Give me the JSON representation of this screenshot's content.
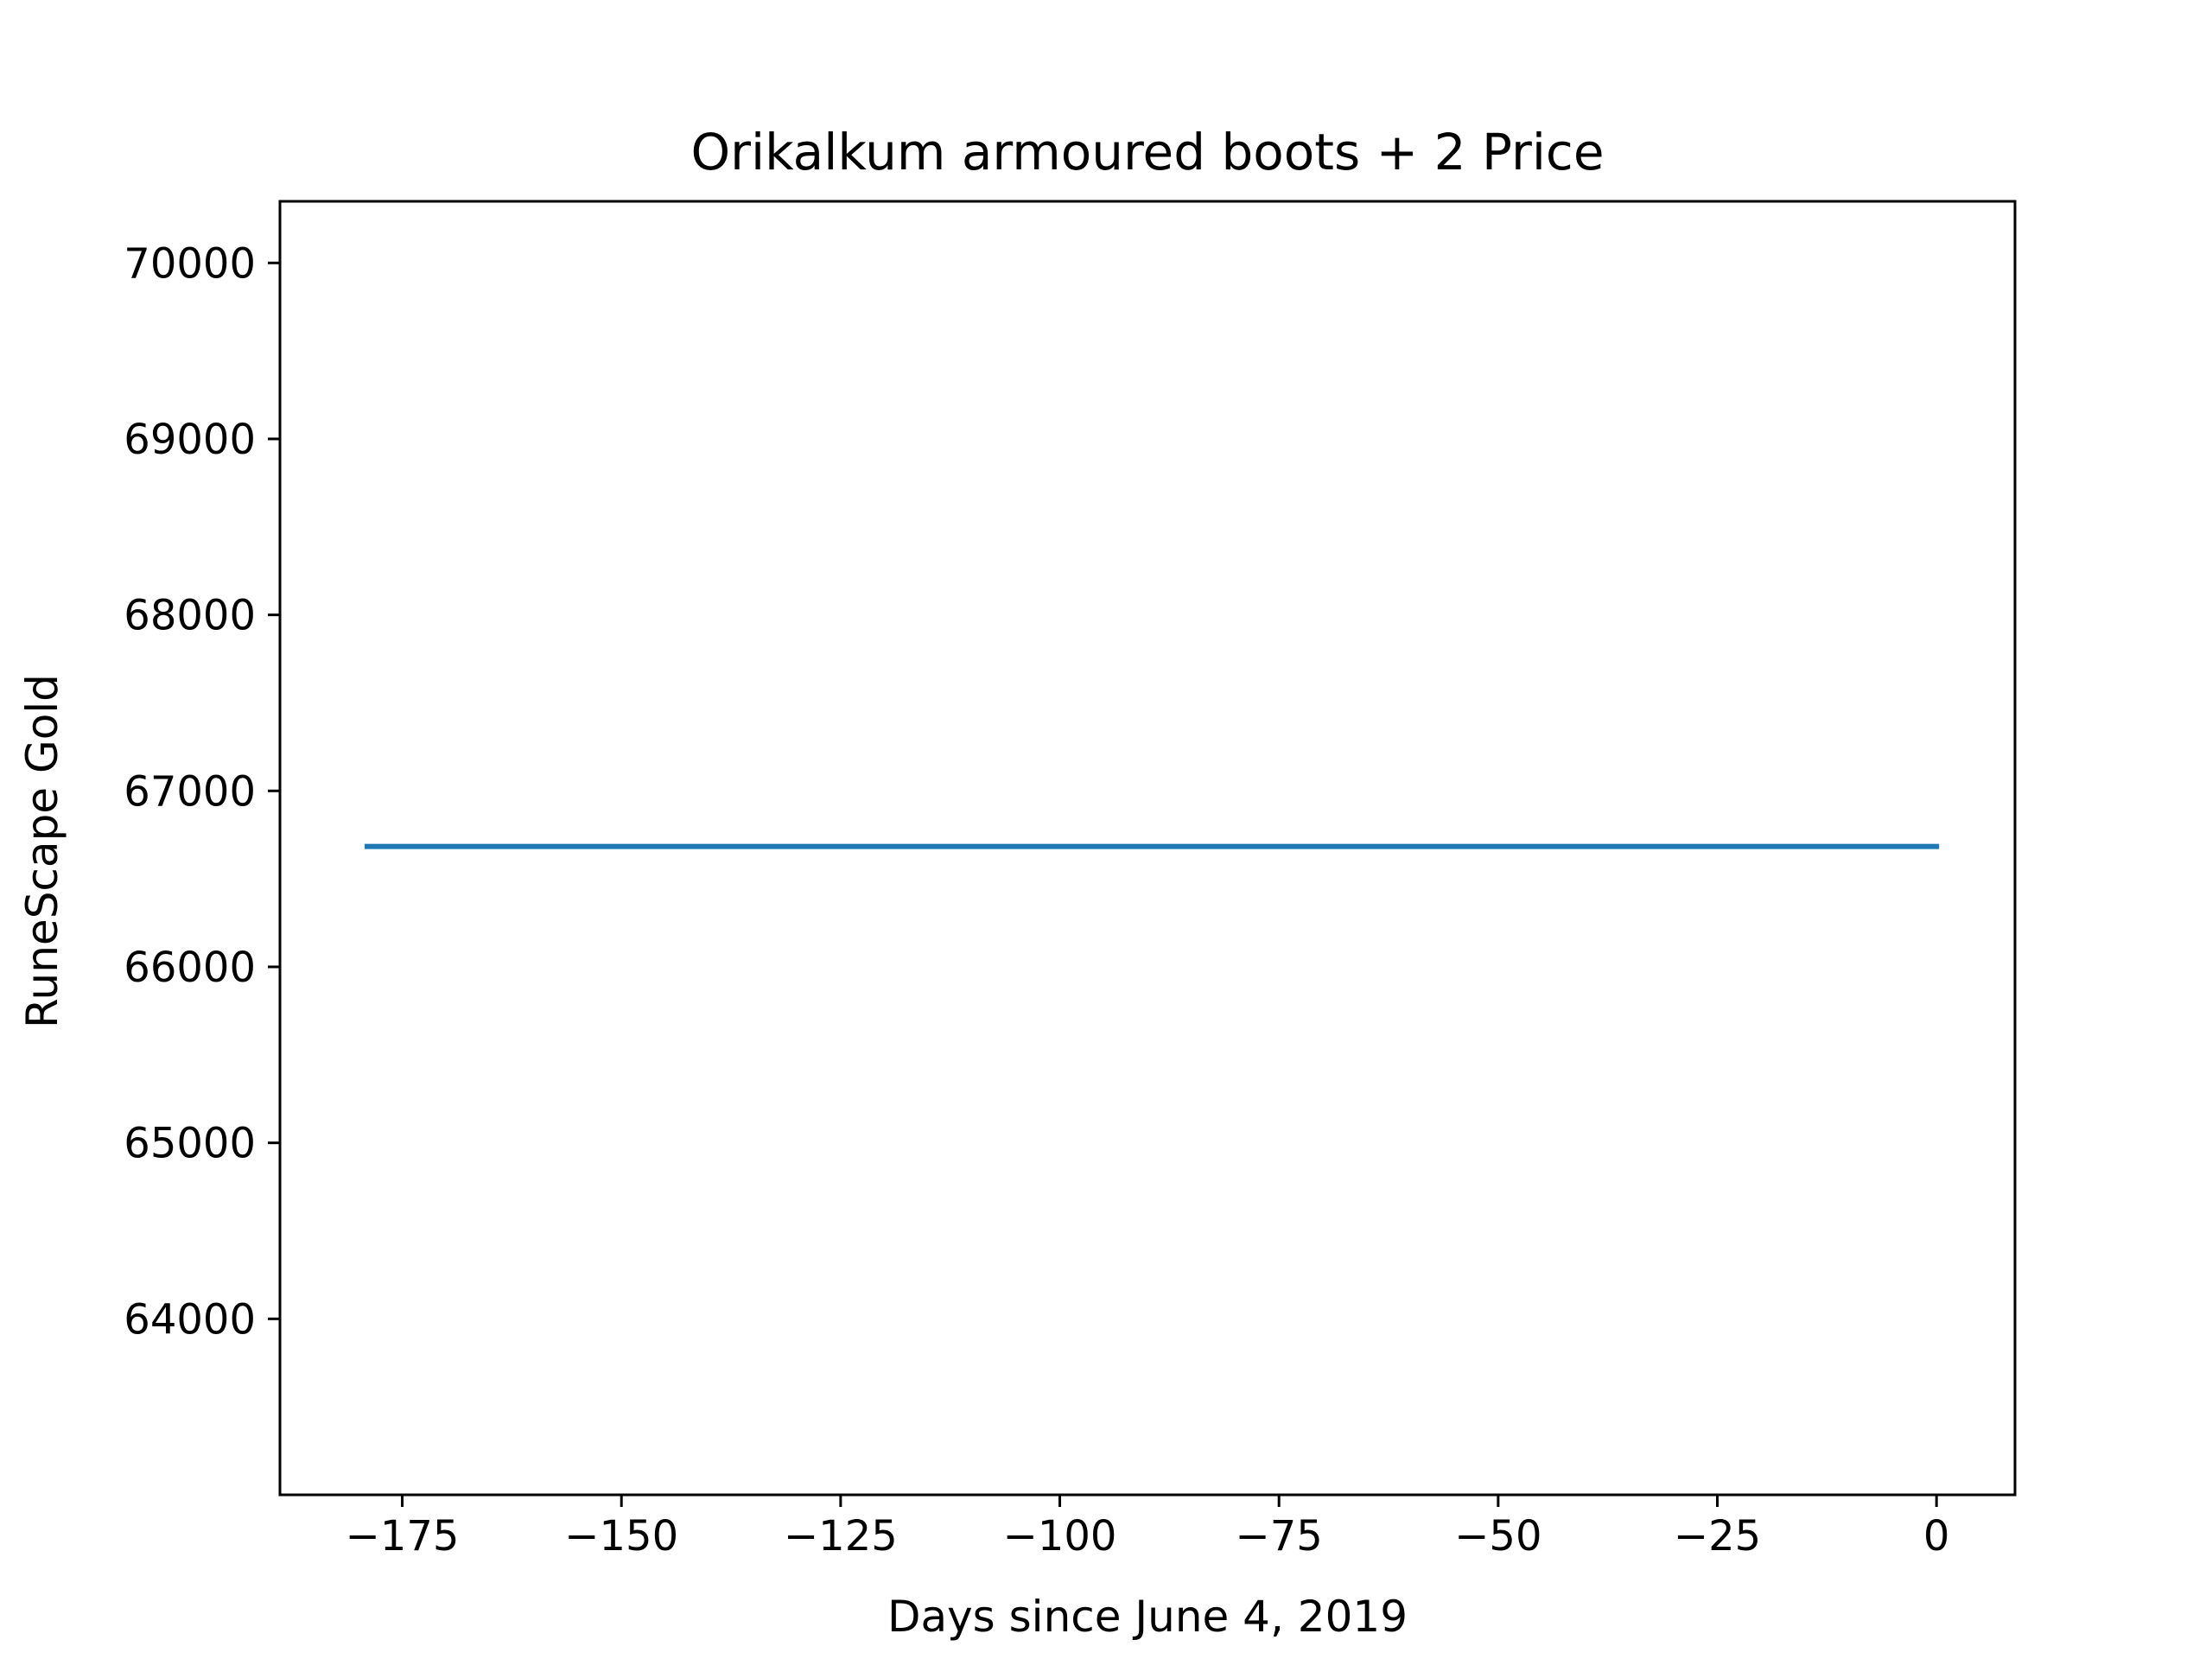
{
  "chart_data": {
    "type": "line",
    "title": "Orikalkum armoured boots + 2 Price",
    "xlabel": "Days since June 4, 2019",
    "ylabel": "RuneScape Gold",
    "xlim": [
      -188.95,
      8.95
    ],
    "ylim": [
      63000,
      70350
    ],
    "x_ticks": [
      -175,
      -150,
      -125,
      -100,
      -75,
      -50,
      -25,
      0
    ],
    "x_tick_labels": [
      "−175",
      "−150",
      "−125",
      "−100",
      "−75",
      "−50",
      "−25",
      "0"
    ],
    "y_ticks": [
      64000,
      65000,
      66000,
      67000,
      68000,
      69000,
      70000
    ],
    "y_tick_labels": [
      "64000",
      "65000",
      "66000",
      "67000",
      "68000",
      "69000",
      "70000"
    ],
    "grid": false,
    "series": [
      {
        "color": "#1f77b4",
        "x": [
          -179,
          0
        ],
        "y": [
          66684,
          66684
        ]
      }
    ]
  }
}
